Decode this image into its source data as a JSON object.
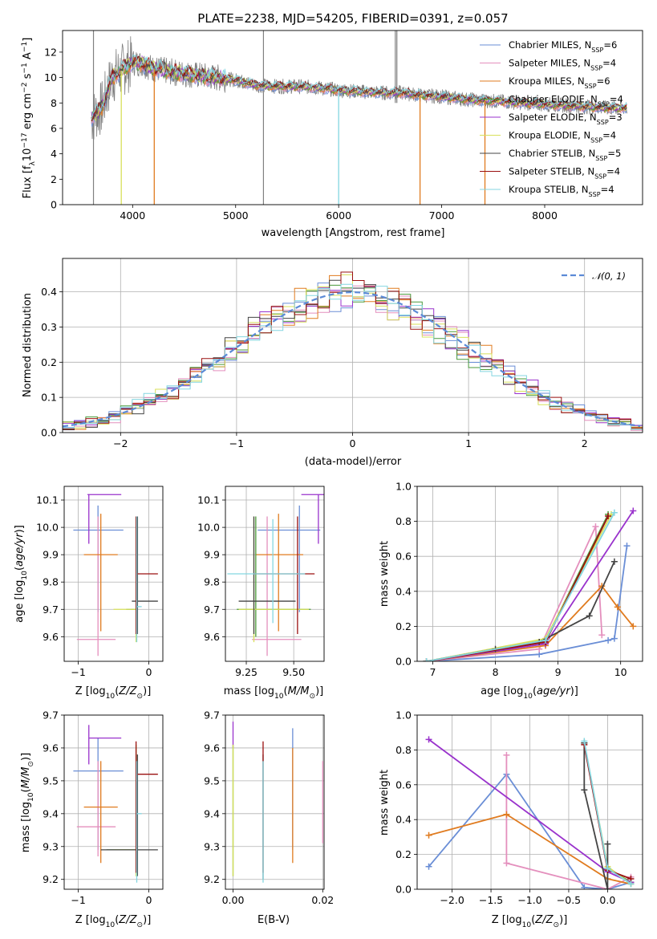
{
  "colors": {
    "chabrier_miles": "#6a8ed6",
    "salpeter_miles": "#e48fbd",
    "kroupa_miles": "#e07b1f",
    "chabrier_elodie": "#4a9a3a",
    "salpeter_elodie": "#9932cc",
    "kroupa_elodie": "#d8e05a",
    "chabrier_stelib": "#444444",
    "salpeter_stelib": "#9a1010",
    "kroupa_stelib": "#84d6e0",
    "data": "#808080"
  },
  "chart_data": [
    {
      "type": "line",
      "title": "PLATE=2238, MJD=54205, FIBERID=0391, z=0.057",
      "xlabel": "wavelength [Angstrom, rest frame]",
      "ylabel": "Flux [fλ10⁻¹⁷ erg cm⁻² s⁻¹ A⁻¹]",
      "xlim": [
        3320,
        8950
      ],
      "ylim": [
        0,
        13.7
      ],
      "xticks": [
        4000,
        5000,
        6000,
        7000,
        8000
      ],
      "yticks": [
        0,
        2,
        4,
        6,
        8,
        10,
        12
      ],
      "legend_position": "upper right",
      "series_names": [
        "Chabrier MILES, N_SSP=6",
        "Salpeter MILES, N_SSP=4",
        "Kroupa MILES, N_SSP=6",
        "Chabrier ELODIE, N_SSP=4",
        "Salpeter ELODIE, N_SSP=3",
        "Kroupa ELODIE, N_SSP=4",
        "Chabrier STELIB, N_SSP=5",
        "Salpeter STELIB, N_SSP=4",
        "Kroupa STELIB, N_SSP=4"
      ],
      "series_keys": [
        "chabrier_miles",
        "salpeter_miles",
        "kroupa_miles",
        "chabrier_elodie",
        "salpeter_elodie",
        "kroupa_elodie",
        "chabrier_stelib",
        "salpeter_stelib",
        "kroupa_stelib"
      ],
      "data_curve": {
        "x": [
          3600,
          3700,
          3800,
          3900,
          4000,
          4100,
          4200,
          4400,
          4600,
          4800,
          5000,
          5200,
          5400,
          5600,
          5800,
          6000,
          6200,
          6400,
          6600,
          6800,
          7000,
          7200,
          7400,
          7600,
          7800,
          8000,
          8200,
          8400,
          8600,
          8800
        ],
        "y": [
          6.8,
          7.6,
          10.0,
          10.6,
          11.2,
          11.1,
          10.7,
          10.4,
          10.2,
          10.0,
          9.8,
          9.4,
          9.3,
          9.3,
          9.2,
          9.0,
          8.9,
          8.8,
          8.8,
          8.6,
          8.5,
          8.3,
          8.2,
          8.1,
          8.0,
          7.9,
          7.8,
          7.7,
          7.6,
          7.6
        ]
      },
      "model_dropouts": [
        {
          "key": "kroupa_miles",
          "x": 4210
        },
        {
          "key": "kroupa_miles",
          "x": 6790
        },
        {
          "key": "kroupa_miles",
          "x": 7420
        },
        {
          "key": "kroupa_stelib",
          "x": 6000
        },
        {
          "key": "kroupa_elodie",
          "x": 3890
        }
      ]
    },
    {
      "type": "histogram",
      "xlabel": "(data-model)/error",
      "ylabel": "Normed distribution",
      "xlim": [
        -2.5,
        2.5
      ],
      "ylim": [
        0,
        0.495
      ],
      "xticks": [
        -2,
        -1,
        0,
        1,
        2
      ],
      "yticks": [
        0.0,
        0.1,
        0.2,
        0.3,
        0.4
      ],
      "grid": true,
      "reference_curve": {
        "name": "N(0,1)",
        "legend_text": "𝒩(0, 1)",
        "style": "dashed",
        "color": "#5b8ad6"
      },
      "legend_position": "upper right",
      "bin_width": 0.1,
      "bin_start": -2.5
    },
    {
      "type": "errorbar",
      "xlabel": "Z [log10(Z/Z⊙)]",
      "ylabel": "age  [log10(age/yr)]",
      "xlim": [
        -1.2,
        0.2
      ],
      "ylim": [
        9.51,
        10.15
      ],
      "xticks": [
        -1,
        0
      ],
      "yticks": [
        9.6,
        9.7,
        9.8,
        9.9,
        10.0,
        10.1
      ],
      "grid": true,
      "points": [
        {
          "key": "chabrier_miles",
          "x": -0.72,
          "y": 9.99,
          "xerr": [
            0.35,
            0.36
          ],
          "yerr": [
            0.3,
            0.09
          ]
        },
        {
          "key": "salpeter_miles",
          "x": -0.72,
          "y": 9.59,
          "xerr": [
            0.3,
            0.25
          ],
          "yerr": [
            0.06,
            0.45
          ]
        },
        {
          "key": "kroupa_miles",
          "x": -0.68,
          "y": 9.9,
          "xerr": [
            0.24,
            0.24
          ],
          "yerr": [
            0.28,
            0.15
          ]
        },
        {
          "key": "chabrier_elodie",
          "x": -0.18,
          "y": 9.7,
          "xerr": [
            0.14,
            0.0
          ],
          "yerr": [
            0.1,
            0.34
          ]
        },
        {
          "key": "salpeter_elodie",
          "x": -0.85,
          "y": 10.12,
          "xerr": [
            0.02,
            0.46
          ],
          "yerr": [
            0.18,
            0.0
          ]
        },
        {
          "key": "kroupa_elodie",
          "x": -0.18,
          "y": 9.7,
          "xerr": [
            0.32,
            0.0
          ],
          "yerr": [
            0.12,
            0.34
          ]
        },
        {
          "key": "chabrier_stelib",
          "x": -0.16,
          "y": 9.73,
          "xerr": [
            0.08,
            0.29
          ],
          "yerr": [
            0.12,
            0.31
          ]
        },
        {
          "key": "salpeter_stelib",
          "x": -0.18,
          "y": 9.83,
          "xerr": [
            0.0,
            0.31
          ],
          "yerr": [
            0.22,
            0.21
          ]
        },
        {
          "key": "kroupa_stelib",
          "x": -0.17,
          "y": 9.71,
          "xerr": [
            0.0,
            0.07
          ],
          "yerr": [
            0.13,
            0.33
          ]
        }
      ]
    },
    {
      "type": "errorbar",
      "xlabel": "mass [log10(M/M⊙)]",
      "ylabel": "",
      "xlim": [
        9.14,
        9.66
      ],
      "ylim": [
        9.51,
        10.15
      ],
      "xticks": [
        9.25,
        9.5
      ],
      "xtick_labels": [
        "9.25",
        "9.50"
      ],
      "yticks": [
        9.6,
        9.7,
        9.8,
        9.9,
        10.0,
        10.1
      ],
      "grid": true,
      "points": [
        {
          "key": "chabrier_miles",
          "x": 9.53,
          "y": 9.99,
          "xerr": [
            0.22,
            0.11
          ],
          "yerr": [
            0.3,
            0.09
          ]
        },
        {
          "key": "salpeter_miles",
          "x": 9.36,
          "y": 9.59,
          "xerr": [
            0.08,
            0.18
          ],
          "yerr": [
            0.06,
            0.45
          ]
        },
        {
          "key": "kroupa_miles",
          "x": 9.42,
          "y": 9.9,
          "xerr": [
            0.12,
            0.13
          ],
          "yerr": [
            0.28,
            0.15
          ]
        },
        {
          "key": "chabrier_elodie",
          "x": 9.3,
          "y": 9.7,
          "xerr": [
            0.1,
            0.29
          ],
          "yerr": [
            0.1,
            0.34
          ]
        },
        {
          "key": "salpeter_elodie",
          "x": 9.63,
          "y": 10.12,
          "xerr": [
            0.09,
            0.03
          ],
          "yerr": [
            0.18,
            0.0
          ]
        },
        {
          "key": "kroupa_elodie",
          "x": 9.29,
          "y": 9.7,
          "xerr": [
            0.08,
            0.29
          ],
          "yerr": [
            0.12,
            0.34
          ]
        },
        {
          "key": "chabrier_stelib",
          "x": 9.29,
          "y": 9.73,
          "xerr": [
            0.08,
            0.22
          ],
          "yerr": [
            0.12,
            0.31
          ]
        },
        {
          "key": "salpeter_stelib",
          "x": 9.52,
          "y": 9.83,
          "xerr": [
            0.23,
            0.09
          ],
          "yerr": [
            0.22,
            0.21
          ]
        },
        {
          "key": "kroupa_stelib",
          "x": 9.39,
          "y": 9.83,
          "xerr": [
            0.24,
            0.17
          ],
          "yerr": [
            0.18,
            0.2
          ]
        }
      ]
    },
    {
      "type": "line",
      "xlabel": "age  [log10(age/yr)]",
      "ylabel": "mass weight",
      "xlim": [
        6.75,
        10.35
      ],
      "ylim": [
        0,
        1.0
      ],
      "xticks": [
        7,
        8,
        9,
        10
      ],
      "yticks": [
        0.0,
        0.2,
        0.4,
        0.6,
        0.8,
        1.0
      ],
      "grid": true,
      "series": [
        {
          "key": "chabrier_miles",
          "x": [
            6.9,
            8.7,
            9.8,
            9.9,
            10.1
          ],
          "y": [
            0.0,
            0.04,
            0.12,
            0.13,
            0.66
          ]
        },
        {
          "key": "salpeter_miles",
          "x": [
            6.9,
            8.7,
            9.6,
            9.7
          ],
          "y": [
            0.0,
            0.07,
            0.77,
            0.15
          ]
        },
        {
          "key": "kroupa_miles",
          "x": [
            6.9,
            8.8,
            9.7,
            9.95,
            10.2
          ],
          "y": [
            0.0,
            0.09,
            0.43,
            0.31,
            0.2
          ]
        },
        {
          "key": "chabrier_elodie",
          "x": [
            6.9,
            8.8,
            9.8
          ],
          "y": [
            0.0,
            0.12,
            0.84
          ]
        },
        {
          "key": "salpeter_elodie",
          "x": [
            6.9,
            8.8,
            10.2
          ],
          "y": [
            0.0,
            0.1,
            0.86
          ]
        },
        {
          "key": "kroupa_elodie",
          "x": [
            6.9,
            8.8,
            9.85
          ],
          "y": [
            0.0,
            0.13,
            0.84
          ]
        },
        {
          "key": "chabrier_stelib",
          "x": [
            6.9,
            8.0,
            8.7,
            9.5,
            9.9
          ],
          "y": [
            0.0,
            0.07,
            0.11,
            0.26,
            0.57
          ]
        },
        {
          "key": "salpeter_stelib",
          "x": [
            6.9,
            8.8,
            9.8
          ],
          "y": [
            0.0,
            0.11,
            0.83
          ]
        },
        {
          "key": "kroupa_stelib",
          "x": [
            6.9,
            8.8,
            9.9
          ],
          "y": [
            0.0,
            0.12,
            0.85
          ]
        }
      ]
    },
    {
      "type": "errorbar",
      "xlabel": "Z [log10(Z/Z⊙)]",
      "ylabel": "mass [log10(M/M⊙)]",
      "xlim": [
        -1.2,
        0.2
      ],
      "ylim": [
        9.17,
        9.7
      ],
      "xticks": [
        -1,
        0
      ],
      "yticks": [
        9.2,
        9.3,
        9.4,
        9.5,
        9.6,
        9.7
      ],
      "grid": true,
      "points": [
        {
          "key": "chabrier_miles",
          "x": -0.72,
          "y": 9.53,
          "xerr": [
            0.35,
            0.36
          ],
          "yerr": [
            0.24,
            0.1
          ]
        },
        {
          "key": "salpeter_miles",
          "x": -0.72,
          "y": 9.36,
          "xerr": [
            0.3,
            0.25
          ],
          "yerr": [
            0.09,
            0.2
          ]
        },
        {
          "key": "kroupa_miles",
          "x": -0.68,
          "y": 9.42,
          "xerr": [
            0.24,
            0.24
          ],
          "yerr": [
            0.17,
            0.14
          ]
        },
        {
          "key": "chabrier_elodie",
          "x": -0.18,
          "y": 9.29,
          "xerr": [
            0.42,
            0.0
          ],
          "yerr": [
            0.08,
            0.32
          ]
        },
        {
          "key": "salpeter_elodie",
          "x": -0.85,
          "y": 9.63,
          "xerr": [
            0.0,
            0.46
          ],
          "yerr": [
            0.08,
            0.04
          ]
        },
        {
          "key": "kroupa_elodie",
          "x": -0.18,
          "y": 9.29,
          "xerr": [
            0.32,
            0.0
          ],
          "yerr": [
            0.08,
            0.32
          ]
        },
        {
          "key": "chabrier_stelib",
          "x": -0.16,
          "y": 9.29,
          "xerr": [
            0.52,
            0.29
          ],
          "yerr": [
            0.08,
            0.29
          ]
        },
        {
          "key": "salpeter_stelib",
          "x": -0.18,
          "y": 9.52,
          "xerr": [
            0.0,
            0.31
          ],
          "yerr": [
            0.3,
            0.1
          ]
        },
        {
          "key": "kroupa_stelib",
          "x": -0.17,
          "y": 9.4,
          "xerr": [
            0.0,
            0.07
          ],
          "yerr": [
            0.21,
            0.16
          ]
        }
      ]
    },
    {
      "type": "errorbar",
      "xlabel": "E(B-V)",
      "ylabel": "",
      "xlim": [
        -0.0017,
        0.0203
      ],
      "ylim": [
        9.17,
        9.7
      ],
      "xticks": [
        0.0,
        0.02
      ],
      "xtick_labels": [
        "0.00",
        "0.02"
      ],
      "yticks": [
        9.2,
        9.3,
        9.4,
        9.5,
        9.6,
        9.7
      ],
      "grid": true,
      "points": [
        {
          "key": "chabrier_miles",
          "x": 0.0133,
          "y": 9.53,
          "yerr": [
            0.24,
            0.13
          ]
        },
        {
          "key": "salpeter_miles",
          "x": 0.02,
          "y": 9.4,
          "yerr": [
            0.09,
            0.16
          ]
        },
        {
          "key": "kroupa_miles",
          "x": 0.0133,
          "y": 9.42,
          "yerr": [
            0.17,
            0.18
          ]
        },
        {
          "key": "chabrier_elodie",
          "x": 0.0,
          "y": 9.29,
          "yerr": [
            0.08,
            0.32
          ]
        },
        {
          "key": "salpeter_elodie",
          "x": 0.0,
          "y": 9.63,
          "yerr": [
            0.03,
            0.05
          ]
        },
        {
          "key": "kroupa_elodie",
          "x": 0.0,
          "y": 9.29,
          "yerr": [
            0.08,
            0.32
          ]
        },
        {
          "key": "chabrier_stelib",
          "x": 0.0067,
          "y": 9.4,
          "yerr": [
            0.2,
            0.18
          ]
        },
        {
          "key": "salpeter_stelib",
          "x": 0.0067,
          "y": 9.52,
          "yerr": [
            0.3,
            0.1
          ]
        },
        {
          "key": "kroupa_stelib",
          "x": 0.0067,
          "y": 9.4,
          "yerr": [
            0.21,
            0.16
          ]
        }
      ]
    },
    {
      "type": "line",
      "xlabel": "Z [log10(Z/Z⊙)]",
      "ylabel": "mass weight",
      "xlim": [
        -2.45,
        0.45
      ],
      "ylim": [
        0,
        1.0
      ],
      "xticks": [
        -2.0,
        -1.5,
        -1.0,
        -0.5,
        0.0
      ],
      "xtick_labels": [
        "−2.0",
        "−1.5",
        "−1.0",
        "−0.5",
        "0.0"
      ],
      "yticks": [
        0.0,
        0.2,
        0.4,
        0.6,
        0.8,
        1.0
      ],
      "grid": true,
      "series": [
        {
          "key": "chabrier_miles",
          "x": [
            -2.3,
            -1.3,
            -0.3,
            0.0,
            0.3
          ],
          "y": [
            0.13,
            0.66,
            0.01,
            0.0,
            0.04
          ]
        },
        {
          "key": "salpeter_miles",
          "x": [
            -1.3,
            -1.3,
            0.0,
            0.3
          ],
          "y": [
            0.77,
            0.15,
            0.0,
            0.07
          ]
        },
        {
          "key": "kroupa_miles",
          "x": [
            -2.3,
            -1.3,
            0.0,
            0.3
          ],
          "y": [
            0.31,
            0.43,
            0.06,
            0.03
          ]
        },
        {
          "key": "chabrier_elodie",
          "x": [
            -0.3,
            0.0,
            0.3
          ],
          "y": [
            0.84,
            0.12,
            0.04
          ]
        },
        {
          "key": "salpeter_elodie",
          "x": [
            -2.3,
            0.0,
            0.3
          ],
          "y": [
            0.86,
            0.1,
            0.04
          ]
        },
        {
          "key": "kroupa_elodie",
          "x": [
            -0.3,
            0.0,
            0.3
          ],
          "y": [
            0.84,
            0.13,
            0.03
          ]
        },
        {
          "key": "chabrier_stelib",
          "x": [
            -0.3,
            -0.3,
            0.0,
            0.0
          ],
          "y": [
            0.84,
            0.57,
            0.0,
            0.26
          ]
        },
        {
          "key": "salpeter_stelib",
          "x": [
            -0.3,
            0.0,
            0.3
          ],
          "y": [
            0.83,
            0.11,
            0.06
          ]
        },
        {
          "key": "kroupa_stelib",
          "x": [
            -0.3,
            0.0,
            0.3
          ],
          "y": [
            0.85,
            0.12,
            0.03
          ]
        }
      ]
    }
  ]
}
